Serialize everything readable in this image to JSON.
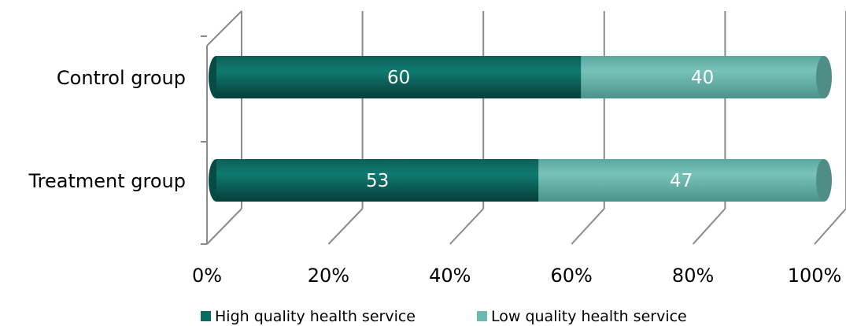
{
  "chart_data": {
    "type": "bar",
    "orientation": "horizontal",
    "stacked": "percent",
    "three_d": true,
    "categories": [
      "Control group",
      "Treatment group"
    ],
    "series": [
      {
        "name": "High quality health service",
        "values": [
          60,
          53
        ],
        "color": "#0a6b62"
      },
      {
        "name": "Low quality health service",
        "values": [
          40,
          47
        ],
        "color": "#6cb9b0"
      }
    ],
    "x_ticks": [
      "0%",
      "20%",
      "40%",
      "60%",
      "80%",
      "100%"
    ],
    "xlim": [
      0,
      100
    ],
    "grid": true,
    "legend_position": "bottom"
  }
}
